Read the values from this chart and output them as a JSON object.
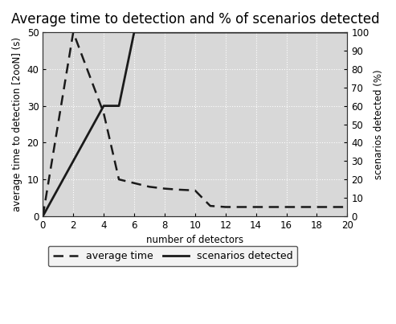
{
  "title": "Average time to detection and % of scenarios detected",
  "xlabel": "number of detectors",
  "ylabel_left": "average time to detection [2ooN] (s)",
  "ylabel_right": "scenarios detected (%)",
  "avg_time_x": [
    0,
    2,
    4,
    5,
    6,
    7,
    8,
    9,
    10,
    11,
    12,
    14,
    16,
    18,
    20
  ],
  "avg_time_y": [
    0,
    50,
    28,
    10,
    9,
    8,
    7.5,
    7.2,
    7.0,
    2.8,
    2.5,
    2.5,
    2.5,
    2.5,
    2.5
  ],
  "scenarios_x": [
    0,
    4,
    5,
    6,
    20
  ],
  "scenarios_y": [
    0,
    60,
    60,
    100,
    100
  ],
  "xlim": [
    0,
    20
  ],
  "ylim_left": [
    0,
    50
  ],
  "ylim_right": [
    0,
    100
  ],
  "xticks": [
    0,
    2,
    4,
    6,
    8,
    10,
    12,
    14,
    16,
    18,
    20
  ],
  "yticks_left": [
    0,
    10,
    20,
    30,
    40,
    50
  ],
  "yticks_right": [
    0,
    10,
    20,
    30,
    40,
    50,
    60,
    70,
    80,
    90,
    100
  ],
  "line_color": "#1a1a1a",
  "plot_bg_color": "#d8d8d8",
  "fig_bg_color": "#ffffff",
  "legend_bg_color": "#f0f0f0",
  "grid_color": "#ffffff",
  "title_fontsize": 12,
  "label_fontsize": 8.5,
  "tick_fontsize": 8.5,
  "legend_fontsize": 9
}
